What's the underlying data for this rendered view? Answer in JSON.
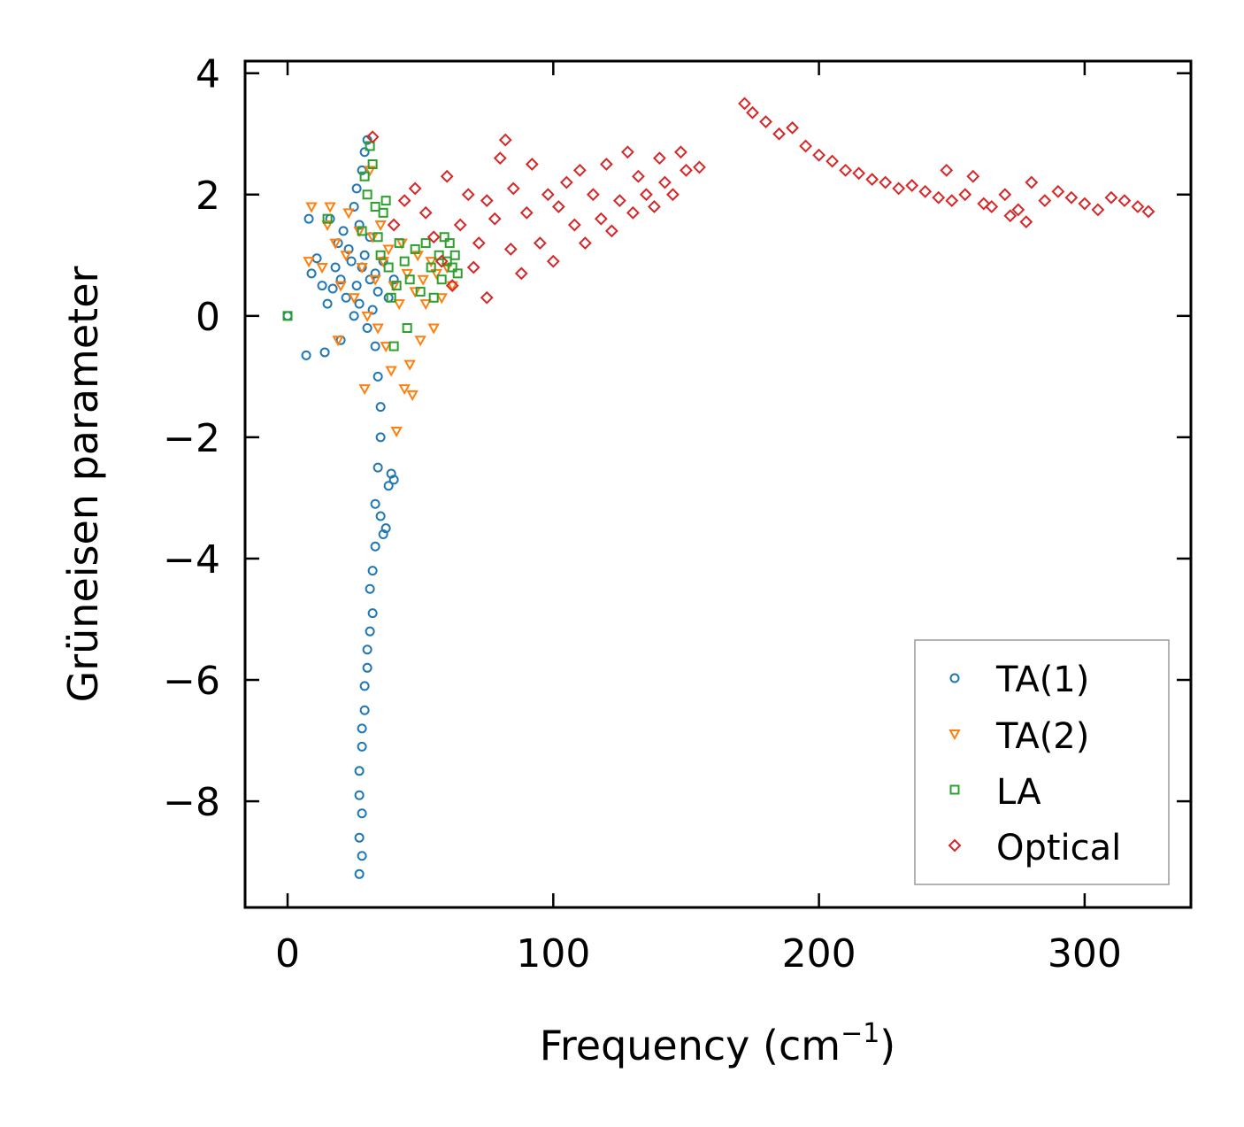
{
  "chart_data": {
    "type": "scatter",
    "title": "",
    "xlabel": "Frequency (cm",
    "xlabel_sup": "−1",
    "xlabel_close": ")",
    "ylabel": "Grüneisen parameter",
    "xlim": [
      -16,
      340
    ],
    "ylim": [
      -9.75,
      4.2
    ],
    "xticks": [
      0,
      100,
      200,
      300
    ],
    "xtick_labels": [
      "0",
      "100",
      "200",
      "300"
    ],
    "yticks": [
      -8,
      -6,
      -4,
      -2,
      0,
      2,
      4
    ],
    "ytick_labels": [
      "−8",
      "−6",
      "−4",
      "−2",
      "0",
      "2",
      "4"
    ],
    "legend_position": "lower-right",
    "series": [
      {
        "name": "TA(1)",
        "marker": "circle",
        "color": "#1f77b4",
        "points": [
          [
            0,
            0
          ],
          [
            7,
            -0.65
          ],
          [
            8,
            1.6
          ],
          [
            9,
            0.7
          ],
          [
            11,
            0.95
          ],
          [
            13,
            0.5
          ],
          [
            14,
            -0.6
          ],
          [
            15,
            0.2
          ],
          [
            16,
            1.6
          ],
          [
            17,
            0.45
          ],
          [
            18,
            0.8
          ],
          [
            19,
            1.2
          ],
          [
            20,
            -0.4
          ],
          [
            20,
            0.6
          ],
          [
            21,
            1.4
          ],
          [
            22,
            0.3
          ],
          [
            23,
            1.1
          ],
          [
            24,
            0.9
          ],
          [
            25,
            0.0
          ],
          [
            25,
            1.8
          ],
          [
            26,
            0.5
          ],
          [
            26,
            2.1
          ],
          [
            27,
            1.5
          ],
          [
            27,
            0.2
          ],
          [
            28,
            2.4
          ],
          [
            28,
            0.8
          ],
          [
            29,
            2.7
          ],
          [
            29,
            1.0
          ],
          [
            30,
            -0.2
          ],
          [
            30,
            2.9
          ],
          [
            31,
            0.6
          ],
          [
            31,
            1.3
          ],
          [
            32,
            0.1
          ],
          [
            33,
            0.7
          ],
          [
            33,
            -0.5
          ],
          [
            34,
            0.4
          ],
          [
            34,
            -1.0
          ],
          [
            35,
            -1.5
          ],
          [
            35,
            -2.0
          ],
          [
            34,
            -2.5
          ],
          [
            33,
            -3.1
          ],
          [
            35,
            -3.3
          ],
          [
            36,
            -3.6
          ],
          [
            37,
            -3.5
          ],
          [
            38,
            -2.8
          ],
          [
            40,
            -2.7
          ],
          [
            39,
            -2.6
          ],
          [
            33,
            -3.8
          ],
          [
            32,
            -4.2
          ],
          [
            31,
            -4.5
          ],
          [
            32,
            -4.9
          ],
          [
            31,
            -5.2
          ],
          [
            30,
            -5.5
          ],
          [
            30,
            -5.8
          ],
          [
            29,
            -6.1
          ],
          [
            29,
            -6.5
          ],
          [
            28,
            -6.8
          ],
          [
            28,
            -7.1
          ],
          [
            27,
            -7.5
          ],
          [
            27,
            -7.9
          ],
          [
            28,
            -8.2
          ],
          [
            27,
            -8.6
          ],
          [
            28,
            -8.9
          ],
          [
            27,
            -9.2
          ],
          [
            36,
            0.9
          ],
          [
            38,
            0.3
          ],
          [
            40,
            0.6
          ]
        ]
      },
      {
        "name": "TA(2)",
        "marker": "triangle-down",
        "color": "#ff7f0e",
        "points": [
          [
            8,
            0.9
          ],
          [
            9,
            1.8
          ],
          [
            13,
            0.8
          ],
          [
            15,
            1.5
          ],
          [
            16,
            1.8
          ],
          [
            18,
            1.2
          ],
          [
            19,
            -0.4
          ],
          [
            20,
            0.5
          ],
          [
            22,
            1.0
          ],
          [
            23,
            1.7
          ],
          [
            25,
            0.3
          ],
          [
            27,
            1.4
          ],
          [
            28,
            0.8
          ],
          [
            29,
            -1.2
          ],
          [
            30,
            0.0
          ],
          [
            31,
            2.4
          ],
          [
            32,
            1.3
          ],
          [
            33,
            0.6
          ],
          [
            34,
            -0.2
          ],
          [
            35,
            1.5
          ],
          [
            36,
            0.9
          ],
          [
            37,
            -0.5
          ],
          [
            38,
            1.1
          ],
          [
            39,
            -0.9
          ],
          [
            40,
            0.5
          ],
          [
            41,
            -1.9
          ],
          [
            42,
            0.2
          ],
          [
            43,
            1.2
          ],
          [
            44,
            -1.2
          ],
          [
            45,
            0.7
          ],
          [
            46,
            -0.8
          ],
          [
            47,
            -1.3
          ],
          [
            48,
            0.4
          ],
          [
            49,
            1.0
          ],
          [
            50,
            -0.4
          ],
          [
            51,
            0.6
          ],
          [
            52,
            0.2
          ],
          [
            54,
            0.9
          ],
          [
            55,
            -0.2
          ],
          [
            56,
            0.7
          ],
          [
            58,
            0.3
          ],
          [
            60,
            0.8
          ],
          [
            62,
            0.5
          ]
        ]
      },
      {
        "name": "LA",
        "marker": "square",
        "color": "#2ca02c",
        "points": [
          [
            0,
            0
          ],
          [
            15,
            1.6
          ],
          [
            28,
            1.4
          ],
          [
            29,
            2.3
          ],
          [
            30,
            2.0
          ],
          [
            31,
            2.8
          ],
          [
            32,
            2.5
          ],
          [
            33,
            1.8
          ],
          [
            34,
            1.3
          ],
          [
            35,
            1.0
          ],
          [
            36,
            1.7
          ],
          [
            37,
            1.9
          ],
          [
            38,
            0.8
          ],
          [
            39,
            0.3
          ],
          [
            40,
            -0.5
          ],
          [
            41,
            0.5
          ],
          [
            42,
            1.2
          ],
          [
            44,
            0.9
          ],
          [
            45,
            -0.2
          ],
          [
            46,
            0.6
          ],
          [
            48,
            1.1
          ],
          [
            50,
            0.4
          ],
          [
            52,
            1.2
          ],
          [
            54,
            0.8
          ],
          [
            55,
            0.3
          ],
          [
            57,
            1.0
          ],
          [
            58,
            0.6
          ],
          [
            59,
            1.3
          ],
          [
            60,
            0.9
          ],
          [
            61,
            1.2
          ],
          [
            62,
            0.8
          ],
          [
            63,
            1.0
          ],
          [
            64,
            0.7
          ]
        ]
      },
      {
        "name": "Optical",
        "marker": "diamond",
        "color": "#d62728",
        "points": [
          [
            32,
            2.95
          ],
          [
            40,
            1.5
          ],
          [
            44,
            1.9
          ],
          [
            48,
            2.1
          ],
          [
            52,
            1.7
          ],
          [
            55,
            1.3
          ],
          [
            58,
            0.9
          ],
          [
            60,
            2.3
          ],
          [
            62,
            0.5
          ],
          [
            65,
            1.5
          ],
          [
            68,
            2.0
          ],
          [
            70,
            0.8
          ],
          [
            72,
            1.2
          ],
          [
            75,
            0.3
          ],
          [
            75,
            1.9
          ],
          [
            78,
            1.6
          ],
          [
            80,
            2.6
          ],
          [
            82,
            2.9
          ],
          [
            84,
            1.1
          ],
          [
            85,
            2.1
          ],
          [
            88,
            0.7
          ],
          [
            90,
            1.7
          ],
          [
            92,
            2.5
          ],
          [
            95,
            1.2
          ],
          [
            98,
            2.0
          ],
          [
            100,
            0.9
          ],
          [
            102,
            1.8
          ],
          [
            105,
            2.2
          ],
          [
            108,
            1.5
          ],
          [
            110,
            2.4
          ],
          [
            112,
            1.2
          ],
          [
            115,
            2.0
          ],
          [
            118,
            1.6
          ],
          [
            120,
            2.5
          ],
          [
            122,
            1.4
          ],
          [
            125,
            1.9
          ],
          [
            128,
            2.7
          ],
          [
            130,
            1.7
          ],
          [
            132,
            2.3
          ],
          [
            135,
            2.0
          ],
          [
            138,
            1.8
          ],
          [
            140,
            2.6
          ],
          [
            142,
            2.2
          ],
          [
            145,
            2.0
          ],
          [
            148,
            2.7
          ],
          [
            150,
            2.4
          ],
          [
            155,
            2.45
          ],
          [
            172,
            3.5
          ],
          [
            175,
            3.35
          ],
          [
            180,
            3.2
          ],
          [
            185,
            3.0
          ],
          [
            190,
            3.1
          ],
          [
            195,
            2.8
          ],
          [
            200,
            2.65
          ],
          [
            205,
            2.55
          ],
          [
            210,
            2.4
          ],
          [
            215,
            2.35
          ],
          [
            220,
            2.25
          ],
          [
            225,
            2.2
          ],
          [
            230,
            2.1
          ],
          [
            235,
            2.15
          ],
          [
            240,
            2.05
          ],
          [
            245,
            1.95
          ],
          [
            248,
            2.4
          ],
          [
            250,
            1.9
          ],
          [
            255,
            2.0
          ],
          [
            258,
            2.3
          ],
          [
            262,
            1.85
          ],
          [
            265,
            1.8
          ],
          [
            270,
            2.0
          ],
          [
            272,
            1.65
          ],
          [
            275,
            1.75
          ],
          [
            278,
            1.55
          ],
          [
            280,
            2.2
          ],
          [
            285,
            1.9
          ],
          [
            290,
            2.05
          ],
          [
            295,
            1.95
          ],
          [
            300,
            1.85
          ],
          [
            305,
            1.75
          ],
          [
            310,
            1.95
          ],
          [
            315,
            1.9
          ],
          [
            320,
            1.8
          ],
          [
            324,
            1.72
          ]
        ]
      }
    ]
  }
}
